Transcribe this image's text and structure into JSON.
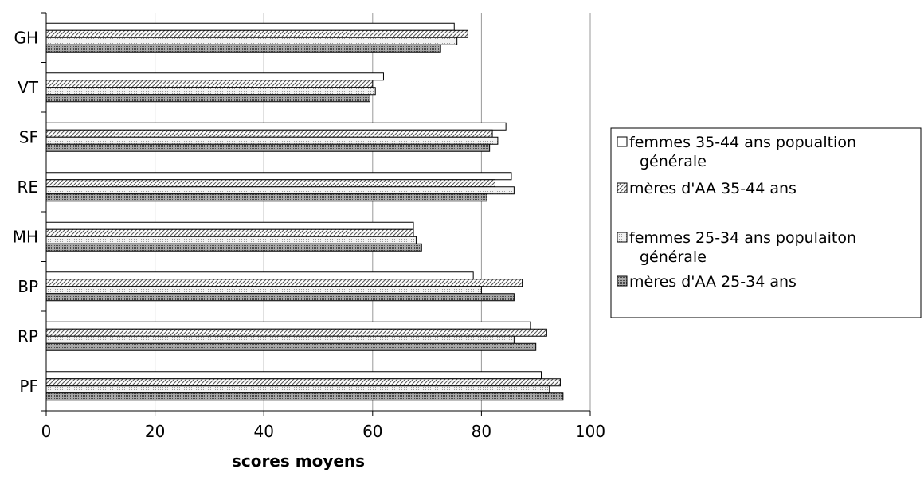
{
  "chart_data": {
    "type": "bar",
    "orientation": "horizontal",
    "categories": [
      "GH",
      "VT",
      "SF",
      "RE",
      "MH",
      "BP",
      "RP",
      "PF"
    ],
    "series": [
      {
        "name": "femmes 35-44 ans popualtion générale",
        "fill": "white",
        "values": [
          75,
          62,
          84.5,
          85.5,
          67.5,
          78.5,
          89,
          91
        ]
      },
      {
        "name": "mères d'AA 35-44 ans",
        "fill": "hatch",
        "values": [
          77.5,
          60,
          82,
          82.5,
          67.5,
          87.5,
          92,
          94.5
        ]
      },
      {
        "name": "femmes 25-34 ans populaiton générale",
        "fill": "lightdots",
        "values": [
          75.5,
          60.5,
          83,
          86,
          68,
          80,
          86,
          92.5
        ]
      },
      {
        "name": "mères d'AA 25-34 ans",
        "fill": "darkdots",
        "values": [
          72.5,
          59.5,
          81.5,
          81,
          69,
          86,
          90,
          95
        ]
      }
    ],
    "xlim": [
      0,
      100
    ],
    "xticks": [
      "0",
      "20",
      "40",
      "60",
      "80",
      "100"
    ],
    "xlabel": "scores moyens",
    "ylabel": "",
    "title": "",
    "grid": "vertical major gridlines",
    "legend_position": "right"
  }
}
